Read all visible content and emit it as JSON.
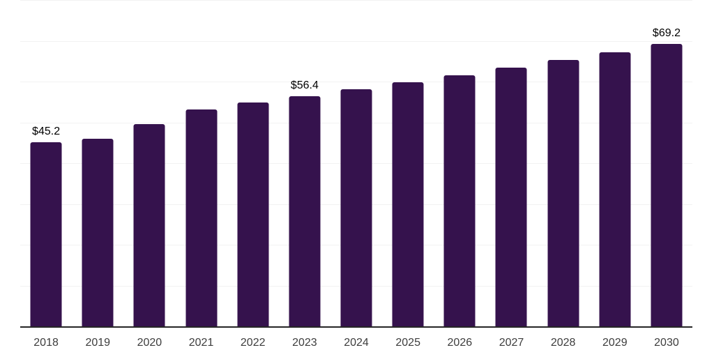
{
  "chart_data": {
    "type": "bar",
    "categories": [
      "2018",
      "2019",
      "2020",
      "2021",
      "2022",
      "2023",
      "2024",
      "2025",
      "2026",
      "2027",
      "2028",
      "2029",
      "2030"
    ],
    "values": [
      45.2,
      46.0,
      49.5,
      53.1,
      54.8,
      56.4,
      58.1,
      59.8,
      61.6,
      63.4,
      65.3,
      67.2,
      69.2
    ],
    "data_labels": [
      "$45.2",
      "",
      "",
      "",
      "",
      "$56.4",
      "",
      "",
      "",
      "",
      "",
      "",
      "$69.2"
    ],
    "title": "",
    "xlabel": "",
    "ylabel": "",
    "ylim": [
      0,
      80
    ],
    "grid": true,
    "gridline_step": 10,
    "y_axis_labels_visible": false,
    "legend": false,
    "colors": {
      "bar": "#35124D",
      "gridline": "#F2F2F2",
      "axis": "#262626",
      "tick_label": "#3D3D3D",
      "data_label": "#000000"
    }
  }
}
